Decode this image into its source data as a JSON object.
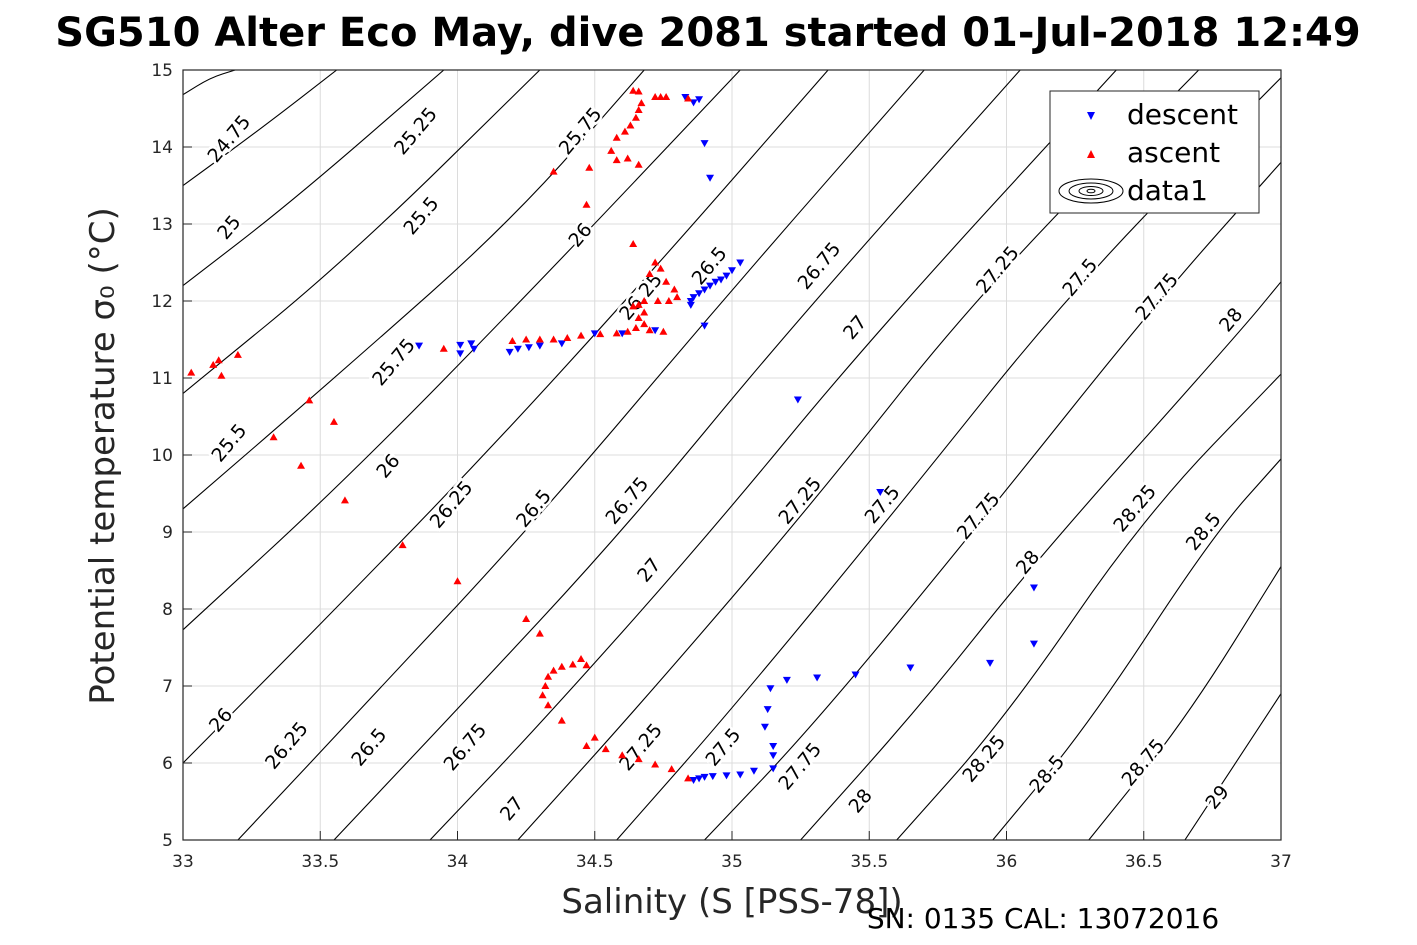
{
  "chart_data": {
    "type": "scatter",
    "title": "SG510 Alter Eco May, dive 2081 started 01-Jul-2018 12:49",
    "xlabel": "Salinity (S [PSS-78])",
    "ylabel": "Potential temperature σ₀ (°C)",
    "xlim": [
      33,
      37
    ],
    "ylim": [
      5,
      15
    ],
    "xticks": [
      33,
      33.5,
      34,
      34.5,
      35,
      35.5,
      36,
      36.5,
      37
    ],
    "xtick_labels": [
      "33",
      "33.5",
      "34",
      "34.5",
      "35",
      "35.5",
      "36",
      "36.5",
      "37"
    ],
    "yticks": [
      5,
      6,
      7,
      8,
      9,
      10,
      11,
      12,
      13,
      14,
      15
    ],
    "ytick_labels": [
      "5",
      "6",
      "7",
      "8",
      "9",
      "10",
      "11",
      "12",
      "13",
      "14",
      "15"
    ],
    "grid": true,
    "legend_position": "top-right",
    "footer": "SN: 0135  CAL: 13072016",
    "contour_labels": [
      {
        "text": "24.75",
        "x": 33.17,
        "y": 14.1
      },
      {
        "text": "25",
        "x": 33.17,
        "y": 12.95
      },
      {
        "text": "25.25",
        "x": 33.85,
        "y": 14.2
      },
      {
        "text": "25.5",
        "x": 33.87,
        "y": 13.1
      },
      {
        "text": "26",
        "x": 34.45,
        "y": 12.85
      },
      {
        "text": "25.75",
        "x": 34.45,
        "y": 14.2
      },
      {
        "text": "26.25",
        "x": 34.67,
        "y": 12.05
      },
      {
        "text": "26.5",
        "x": 34.92,
        "y": 12.45
      },
      {
        "text": "26.75",
        "x": 35.32,
        "y": 12.45
      },
      {
        "text": "27",
        "x": 35.45,
        "y": 11.65
      },
      {
        "text": "27.25",
        "x": 35.97,
        "y": 12.4
      },
      {
        "text": "27.5",
        "x": 36.27,
        "y": 12.3
      },
      {
        "text": "27.75",
        "x": 36.55,
        "y": 12.05
      },
      {
        "text": "28",
        "x": 36.82,
        "y": 11.75
      },
      {
        "text": "25.75",
        "x": 33.77,
        "y": 11.2
      },
      {
        "text": "25.5",
        "x": 33.17,
        "y": 10.15
      },
      {
        "text": "26",
        "x": 33.75,
        "y": 9.85
      },
      {
        "text": "26.25",
        "x": 33.98,
        "y": 9.35
      },
      {
        "text": "26.5",
        "x": 34.28,
        "y": 9.3
      },
      {
        "text": "26.75",
        "x": 34.62,
        "y": 9.4
      },
      {
        "text": "27",
        "x": 34.7,
        "y": 8.5
      },
      {
        "text": "27.25",
        "x": 35.25,
        "y": 9.4
      },
      {
        "text": "27.5",
        "x": 35.55,
        "y": 9.35
      },
      {
        "text": "27.75",
        "x": 35.9,
        "y": 9.2
      },
      {
        "text": "28",
        "x": 36.08,
        "y": 8.6
      },
      {
        "text": "28.25",
        "x": 36.47,
        "y": 9.3
      },
      {
        "text": "28.5",
        "x": 36.72,
        "y": 9.0
      },
      {
        "text": "26",
        "x": 33.14,
        "y": 6.55
      },
      {
        "text": "26.25",
        "x": 33.38,
        "y": 6.22
      },
      {
        "text": "26.5",
        "x": 33.68,
        "y": 6.2
      },
      {
        "text": "26.75",
        "x": 34.03,
        "y": 6.2
      },
      {
        "text": "27",
        "x": 34.2,
        "y": 5.4
      },
      {
        "text": "27.25",
        "x": 34.67,
        "y": 6.2
      },
      {
        "text": "27.5",
        "x": 34.97,
        "y": 6.2
      },
      {
        "text": "27.75",
        "x": 35.25,
        "y": 5.95
      },
      {
        "text": "28",
        "x": 35.47,
        "y": 5.5
      },
      {
        "text": "28.25",
        "x": 35.92,
        "y": 6.05
      },
      {
        "text": "28.5",
        "x": 36.15,
        "y": 5.85
      },
      {
        "text": "28.75",
        "x": 36.5,
        "y": 6.0
      },
      {
        "text": "29",
        "x": 36.77,
        "y": 5.55
      }
    ],
    "contour_lines": [
      {
        "level": "24.75",
        "points": [
          [
            33,
            14.68
          ],
          [
            33.1,
            14.9
          ],
          [
            33.19,
            15
          ]
        ]
      },
      {
        "level": "25",
        "points": [
          [
            33,
            13.5
          ],
          [
            33.3,
            14.28
          ],
          [
            33.56,
            15
          ]
        ]
      },
      {
        "level": "25.25",
        "points": [
          [
            33,
            12.2
          ],
          [
            33.4,
            13.3
          ],
          [
            33.95,
            15
          ]
        ]
      },
      {
        "level": "25.5",
        "points": [
          [
            33,
            10.8
          ],
          [
            33.6,
            12.55
          ],
          [
            34.3,
            15
          ]
        ]
      },
      {
        "level": "25.75",
        "points": [
          [
            33,
            9.3
          ],
          [
            33.6,
            11.15
          ],
          [
            34.2,
            13.05
          ],
          [
            34.68,
            15
          ]
        ]
      },
      {
        "level": "26",
        "points": [
          [
            33,
            7.73
          ],
          [
            33.6,
            9.7
          ],
          [
            34.3,
            12.25
          ],
          [
            35.03,
            15
          ]
        ]
      },
      {
        "level": "26.25",
        "points": [
          [
            33,
            6.0
          ],
          [
            33.5,
            7.8
          ],
          [
            34.1,
            10.0
          ],
          [
            34.7,
            12.35
          ],
          [
            35.35,
            15
          ]
        ]
      },
      {
        "level": "26.5",
        "points": [
          [
            33.2,
            5.0
          ],
          [
            33.7,
            6.9
          ],
          [
            34.3,
            9.2
          ],
          [
            35.0,
            12.15
          ],
          [
            35.7,
            15
          ]
        ]
      },
      {
        "level": "26.75",
        "points": [
          [
            33.55,
            5.0
          ],
          [
            34.0,
            6.7
          ],
          [
            34.6,
            9.0
          ],
          [
            35.2,
            11.6
          ],
          [
            36.05,
            15
          ]
        ]
      },
      {
        "level": "27",
        "points": [
          [
            33.9,
            5.0
          ],
          [
            34.3,
            6.5
          ],
          [
            34.9,
            8.9
          ],
          [
            35.5,
            11.5
          ],
          [
            36.4,
            15
          ]
        ]
      },
      {
        "level": "27.25",
        "points": [
          [
            34.22,
            5.0
          ],
          [
            34.7,
            6.9
          ],
          [
            35.3,
            9.4
          ],
          [
            35.9,
            12.1
          ],
          [
            36.7,
            15
          ]
        ]
      },
      {
        "level": "27.5",
        "points": [
          [
            34.58,
            5.0
          ],
          [
            35.0,
            6.7
          ],
          [
            35.6,
            9.3
          ],
          [
            36.25,
            12.2
          ],
          [
            37.0,
            14.9
          ]
        ]
      },
      {
        "level": "27.75",
        "points": [
          [
            34.9,
            5.0
          ],
          [
            35.3,
            6.5
          ],
          [
            35.9,
            9.1
          ],
          [
            36.55,
            12.0
          ],
          [
            37.0,
            13.8
          ]
        ]
      },
      {
        "level": "28",
        "points": [
          [
            35.25,
            5.0
          ],
          [
            35.7,
            6.8
          ],
          [
            36.1,
            8.6
          ],
          [
            36.85,
            11.6
          ],
          [
            37.0,
            12.25
          ]
        ]
      },
      {
        "level": "28.25",
        "points": [
          [
            35.6,
            5.0
          ],
          [
            36.0,
            6.6
          ],
          [
            36.5,
            9.2
          ],
          [
            37.0,
            11.05
          ]
        ]
      },
      {
        "level": "28.5",
        "points": [
          [
            35.95,
            5.0
          ],
          [
            36.3,
            6.5
          ],
          [
            36.75,
            8.95
          ],
          [
            37.0,
            9.95
          ]
        ]
      },
      {
        "level": "28.75",
        "points": [
          [
            36.3,
            5.0
          ],
          [
            36.65,
            6.55
          ],
          [
            37.0,
            8.55
          ]
        ]
      },
      {
        "level": "29",
        "points": [
          [
            36.65,
            5.0
          ],
          [
            37.0,
            6.9
          ]
        ]
      }
    ],
    "series": [
      {
        "name": "descent",
        "color": "#0000ff",
        "marker": "triangle-down",
        "points": [
          [
            34.83,
            14.65
          ],
          [
            34.86,
            14.58
          ],
          [
            34.88,
            14.62
          ],
          [
            34.9,
            14.05
          ],
          [
            34.92,
            13.6
          ],
          [
            35.03,
            12.5
          ],
          [
            35.0,
            12.4
          ],
          [
            34.98,
            12.33
          ],
          [
            34.96,
            12.28
          ],
          [
            34.94,
            12.25
          ],
          [
            34.92,
            12.2
          ],
          [
            34.9,
            12.15
          ],
          [
            34.88,
            12.1
          ],
          [
            34.86,
            12.05
          ],
          [
            34.85,
            12.0
          ],
          [
            34.85,
            11.95
          ],
          [
            34.9,
            11.68
          ],
          [
            34.72,
            11.62
          ],
          [
            34.6,
            11.58
          ],
          [
            34.5,
            11.58
          ],
          [
            34.38,
            11.45
          ],
          [
            34.3,
            11.42
          ],
          [
            34.26,
            11.4
          ],
          [
            34.22,
            11.38
          ],
          [
            34.19,
            11.34
          ],
          [
            34.06,
            11.38
          ],
          [
            34.01,
            11.32
          ],
          [
            34.01,
            11.43
          ],
          [
            34.05,
            11.45
          ],
          [
            33.86,
            11.42
          ],
          [
            35.24,
            10.72
          ],
          [
            35.54,
            9.52
          ],
          [
            36.1,
            8.28
          ],
          [
            36.1,
            7.55
          ],
          [
            35.94,
            7.3
          ],
          [
            35.65,
            7.24
          ],
          [
            35.45,
            7.15
          ],
          [
            35.31,
            7.11
          ],
          [
            35.2,
            7.08
          ],
          [
            35.14,
            6.97
          ],
          [
            35.13,
            6.7
          ],
          [
            35.12,
            6.47
          ],
          [
            35.15,
            6.22
          ],
          [
            35.15,
            6.1
          ],
          [
            35.15,
            5.93
          ],
          [
            35.08,
            5.9
          ],
          [
            35.03,
            5.85
          ],
          [
            34.98,
            5.84
          ],
          [
            34.93,
            5.83
          ],
          [
            34.9,
            5.82
          ],
          [
            34.88,
            5.8
          ],
          [
            34.86,
            5.78
          ]
        ]
      },
      {
        "name": "ascent",
        "color": "#ff0000",
        "marker": "triangle-up",
        "points": [
          [
            34.64,
            14.73
          ],
          [
            34.66,
            14.72
          ],
          [
            34.72,
            14.65
          ],
          [
            34.74,
            14.65
          ],
          [
            34.76,
            14.65
          ],
          [
            34.84,
            14.63
          ],
          [
            34.67,
            14.57
          ],
          [
            34.66,
            14.48
          ],
          [
            34.65,
            14.38
          ],
          [
            34.63,
            14.28
          ],
          [
            34.61,
            14.2
          ],
          [
            34.58,
            14.12
          ],
          [
            34.56,
            13.95
          ],
          [
            34.62,
            13.85
          ],
          [
            34.66,
            13.77
          ],
          [
            34.58,
            13.83
          ],
          [
            34.48,
            13.73
          ],
          [
            34.35,
            13.68
          ],
          [
            34.47,
            13.25
          ],
          [
            34.64,
            12.74
          ],
          [
            34.72,
            12.5
          ],
          [
            34.74,
            12.42
          ],
          [
            34.7,
            12.35
          ],
          [
            34.76,
            12.25
          ],
          [
            34.79,
            12.15
          ],
          [
            34.8,
            12.05
          ],
          [
            34.77,
            12.0
          ],
          [
            34.73,
            12.0
          ],
          [
            34.68,
            12.0
          ],
          [
            34.66,
            11.95
          ],
          [
            34.64,
            11.93
          ],
          [
            34.68,
            11.85
          ],
          [
            34.66,
            11.78
          ],
          [
            34.68,
            11.7
          ],
          [
            34.65,
            11.65
          ],
          [
            34.7,
            11.62
          ],
          [
            34.75,
            11.6
          ],
          [
            34.62,
            11.6
          ],
          [
            34.58,
            11.58
          ],
          [
            34.52,
            11.57
          ],
          [
            34.45,
            11.55
          ],
          [
            34.4,
            11.52
          ],
          [
            34.35,
            11.5
          ],
          [
            34.3,
            11.5
          ],
          [
            34.25,
            11.5
          ],
          [
            34.2,
            11.48
          ],
          [
            33.95,
            11.38
          ],
          [
            33.03,
            11.07
          ],
          [
            33.11,
            11.17
          ],
          [
            33.13,
            11.23
          ],
          [
            33.14,
            11.03
          ],
          [
            33.2,
            11.3
          ],
          [
            33.33,
            10.23
          ],
          [
            33.43,
            9.86
          ],
          [
            33.46,
            10.71
          ],
          [
            33.55,
            10.43
          ],
          [
            33.59,
            9.41
          ],
          [
            33.8,
            8.83
          ],
          [
            34.0,
            8.36
          ],
          [
            34.25,
            7.87
          ],
          [
            34.3,
            7.68
          ],
          [
            34.45,
            7.35
          ],
          [
            34.47,
            7.27
          ],
          [
            34.42,
            7.28
          ],
          [
            34.38,
            7.25
          ],
          [
            34.35,
            7.2
          ],
          [
            34.33,
            7.12
          ],
          [
            34.32,
            7.0
          ],
          [
            34.31,
            6.88
          ],
          [
            34.33,
            6.75
          ],
          [
            34.38,
            6.55
          ],
          [
            34.47,
            6.22
          ],
          [
            34.5,
            6.33
          ],
          [
            34.54,
            6.18
          ],
          [
            34.6,
            6.1
          ],
          [
            34.66,
            6.05
          ],
          [
            34.72,
            5.98
          ],
          [
            34.78,
            5.92
          ],
          [
            34.84,
            5.8
          ]
        ]
      }
    ],
    "legend": {
      "entries": [
        {
          "label": "descent",
          "color": "#0000ff",
          "marker": "triangle-down"
        },
        {
          "label": "ascent",
          "color": "#ff0000",
          "marker": "triangle-up"
        },
        {
          "label": "data1",
          "color": "#000000",
          "marker": "contour"
        }
      ]
    }
  }
}
